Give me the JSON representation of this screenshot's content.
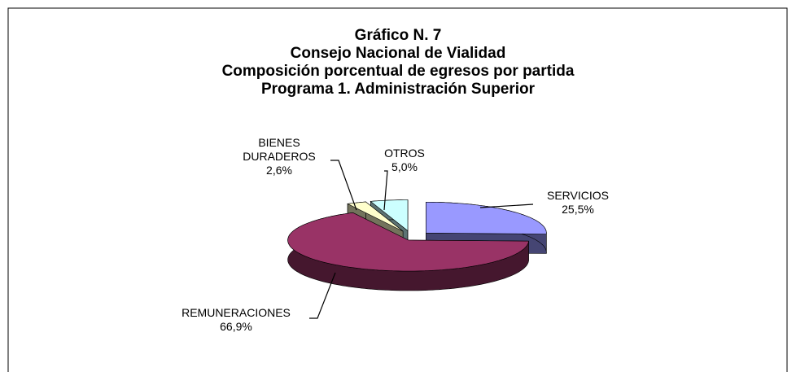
{
  "chart_data": {
    "type": "pie3d",
    "title": [
      "Gráfico N. 7",
      "Consejo Nacional de Vialidad",
      "Composición porcentual  de egresos por partida",
      "Programa 1. Administración Superior"
    ],
    "categories": [
      "SERVICIOS",
      "REMUNERACIONES",
      "BIENES DURADEROS",
      "OTROS"
    ],
    "values": [
      25.5,
      66.9,
      2.6,
      5.0
    ],
    "value_labels": [
      "25,5%",
      "66,9%",
      "2,6%",
      "5,0%"
    ],
    "colors": [
      "#9999ff",
      "#993366",
      "#ffffcc",
      "#ccffff"
    ]
  }
}
